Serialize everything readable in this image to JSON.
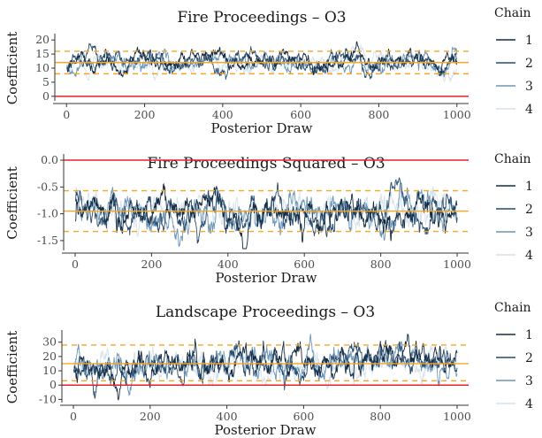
{
  "chart_data": [
    {
      "type": "line",
      "title": "Fire Proceedings – O3",
      "xlabel": "Posterior Draw",
      "ylabel": "Coefficient",
      "xlim": [
        -30,
        1030
      ],
      "ylim": [
        -1,
        21
      ],
      "xticks": [
        0,
        200,
        400,
        600,
        800,
        1000
      ],
      "yticks": [
        0,
        5,
        10,
        15,
        20
      ],
      "reference_lines": [
        {
          "value": 0,
          "style": "solid",
          "color": "#e8202a"
        },
        {
          "value": 12,
          "style": "solid",
          "color": "#f5a623"
        },
        {
          "value": 16,
          "style": "dashed",
          "color": "#f5a623"
        },
        {
          "value": 8,
          "style": "dashed",
          "color": "#f5a623"
        }
      ],
      "trace": {
        "mean": 12,
        "spread": 2.1,
        "drift": 0,
        "seed": 11,
        "n_draws": 1000
      },
      "series": [
        {
          "name": "1",
          "color": "#132b43"
        },
        {
          "name": "2",
          "color": "#2a4c6e"
        },
        {
          "name": "3",
          "color": "#6b96b8"
        },
        {
          "name": "4",
          "color": "#d6e2ec"
        }
      ],
      "legend": {
        "title": "Chain",
        "position": "right"
      }
    },
    {
      "type": "line",
      "title": "Fire Proceedings Squared – O3",
      "xlabel": "Posterior Draw",
      "ylabel": "Coefficient",
      "xlim": [
        -30,
        1030
      ],
      "ylim": [
        -1.65,
        0.05
      ],
      "xticks": [
        0,
        200,
        400,
        600,
        800,
        1000
      ],
      "yticks": [
        -1.5,
        -1.0,
        -0.5,
        0.0
      ],
      "ytick_labels": [
        "-1.5",
        "-1.0",
        "-0.5",
        "0.0"
      ],
      "reference_lines": [
        {
          "value": 0,
          "style": "solid",
          "color": "#e8202a"
        },
        {
          "value": -0.95,
          "style": "solid",
          "color": "#f5a623"
        },
        {
          "value": -0.57,
          "style": "dashed",
          "color": "#f5a623"
        },
        {
          "value": -1.33,
          "style": "dashed",
          "color": "#f5a623"
        }
      ],
      "trace": {
        "mean": -0.95,
        "spread": 0.2,
        "drift": 0,
        "seed": 23,
        "n_draws": 1000
      },
      "series": [
        {
          "name": "1",
          "color": "#132b43"
        },
        {
          "name": "2",
          "color": "#2a4c6e"
        },
        {
          "name": "3",
          "color": "#6b96b8"
        },
        {
          "name": "4",
          "color": "#d6e2ec"
        }
      ],
      "legend": {
        "title": "Chain",
        "position": "right"
      }
    },
    {
      "type": "line",
      "title": "Landscape Proceedings – O3",
      "xlabel": "Posterior Draw",
      "ylabel": "Coefficient",
      "xlim": [
        -30,
        1030
      ],
      "ylim": [
        -11,
        36
      ],
      "xticks": [
        0,
        200,
        400,
        600,
        800,
        1000
      ],
      "yticks": [
        -10,
        0,
        10,
        20,
        30
      ],
      "reference_lines": [
        {
          "value": 0,
          "style": "solid",
          "color": "#e8202a"
        },
        {
          "value": 15,
          "style": "solid",
          "color": "#f5a623"
        },
        {
          "value": 28,
          "style": "dashed",
          "color": "#f5a623"
        },
        {
          "value": 3,
          "style": "dashed",
          "color": "#f5a623"
        }
      ],
      "trace": {
        "mean": 15,
        "spread": 6.5,
        "drift": 8,
        "seed": 37,
        "n_draws": 1000
      },
      "series": [
        {
          "name": "1",
          "color": "#132b43"
        },
        {
          "name": "2",
          "color": "#2a4c6e"
        },
        {
          "name": "3",
          "color": "#6b96b8"
        },
        {
          "name": "4",
          "color": "#d6e2ec"
        }
      ],
      "legend": {
        "title": "Chain",
        "position": "right"
      }
    }
  ]
}
